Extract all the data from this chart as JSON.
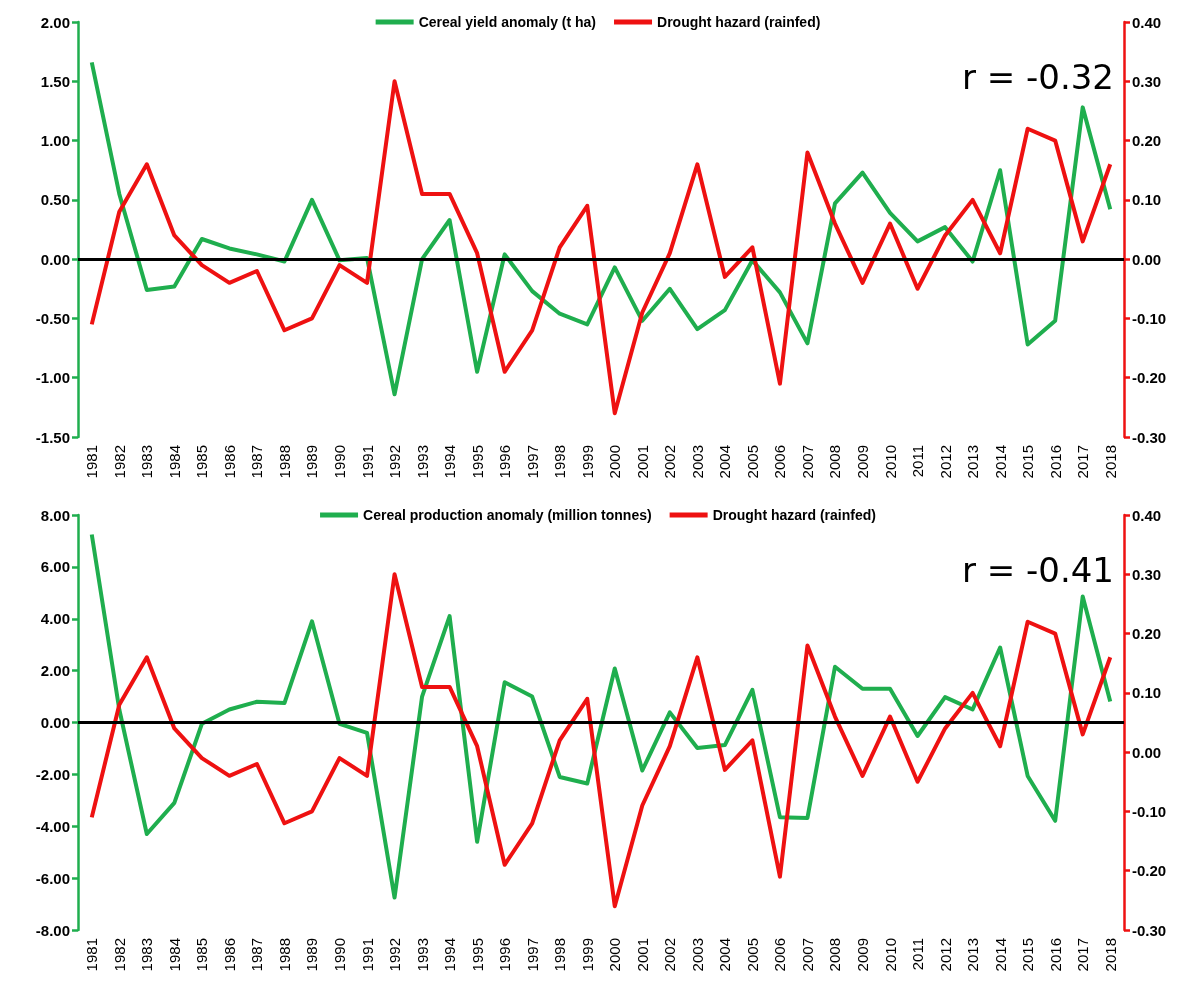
{
  "chart_data": [
    {
      "type": "line",
      "categories": [
        "1981",
        "1982",
        "1983",
        "1984",
        "1985",
        "1986",
        "1987",
        "1988",
        "1989",
        "1990",
        "1991",
        "1992",
        "1993",
        "1994",
        "1995",
        "1996",
        "1997",
        "1998",
        "1999",
        "2000",
        "2001",
        "2002",
        "2003",
        "2004",
        "2005",
        "2006",
        "2007",
        "2008",
        "2009",
        "2010",
        "2011",
        "2012",
        "2013",
        "2014",
        "2015",
        "2016",
        "2017",
        "2018"
      ],
      "series": [
        {
          "name": "Cereal yield anomaly (t ha)",
          "color": "#1fae4e",
          "values": [
            1.66,
            0.55,
            -0.26,
            -0.23,
            0.17,
            0.09,
            0.04,
            -0.02,
            0.5,
            -0.01,
            0.01,
            -1.14,
            0.0,
            0.33,
            -0.95,
            0.04,
            -0.27,
            -0.46,
            -0.55,
            -0.07,
            -0.52,
            -0.25,
            -0.59,
            -0.43,
            -0.01,
            -0.28,
            -0.71,
            0.47,
            0.73,
            0.39,
            0.15,
            0.27,
            -0.02,
            0.75,
            -0.72,
            -0.52,
            1.28,
            0.42
          ]
        },
        {
          "name": "Drought hazard (rainfed)",
          "color": "#ee1111",
          "axis": "y2",
          "values": [
            -0.11,
            0.08,
            0.16,
            0.04,
            -0.01,
            -0.04,
            -0.02,
            -0.12,
            -0.1,
            -0.01,
            -0.04,
            0.3,
            0.11,
            0.11,
            0.01,
            -0.19,
            -0.12,
            0.02,
            0.09,
            -0.26,
            -0.09,
            0.01,
            0.16,
            -0.03,
            0.02,
            -0.21,
            0.18,
            0.06,
            -0.04,
            0.06,
            -0.05,
            0.04,
            0.1,
            0.01,
            0.22,
            0.2,
            0.03,
            0.16
          ]
        }
      ],
      "ylim": [
        -1.5,
        2
      ],
      "yticks": [
        {
          "value": -1.5,
          "label": "-1.50"
        },
        {
          "value": -1,
          "label": "-1.00"
        },
        {
          "value": -0.5,
          "label": "-0.50"
        },
        {
          "value": 0,
          "label": "0.00"
        },
        {
          "value": 0.5,
          "label": "0.50"
        },
        {
          "value": 1,
          "label": "1.00"
        },
        {
          "value": 1.5,
          "label": "1.50"
        },
        {
          "value": 2,
          "label": "2.00"
        }
      ],
      "y2lim": [
        -0.3,
        0.4
      ],
      "y2ticks": [
        {
          "value": -0.3,
          "label": "-0.30"
        },
        {
          "value": -0.2,
          "label": "-0.20"
        },
        {
          "value": -0.1,
          "label": "-0.10"
        },
        {
          "value": 0,
          "label": "0.00"
        },
        {
          "value": 0.1,
          "label": "0.10"
        },
        {
          "value": 0.2,
          "label": "0.20"
        },
        {
          "value": 0.3,
          "label": "0.30"
        },
        {
          "value": 0.4,
          "label": "0.40"
        }
      ],
      "ref_lines": [
        {
          "axis": "y",
          "value": 0,
          "color": "#000000"
        }
      ],
      "annotations": [
        "r = -0.32"
      ],
      "legend": "top",
      "marker": "none",
      "grid": false
    },
    {
      "type": "line",
      "categories": [
        "1981",
        "1982",
        "1983",
        "1984",
        "1985",
        "1986",
        "1987",
        "1988",
        "1989",
        "1990",
        "1991",
        "1992",
        "1993",
        "1994",
        "1995",
        "1996",
        "1997",
        "1998",
        "1999",
        "2000",
        "2001",
        "2002",
        "2003",
        "2004",
        "2005",
        "2006",
        "2007",
        "2008",
        "2009",
        "2010",
        "2011",
        "2012",
        "2013",
        "2014",
        "2015",
        "2016",
        "2017",
        "2018"
      ],
      "series": [
        {
          "name": "Cereal production anomaly (million tonnes)",
          "color": "#1fae4e",
          "values": [
            7.25,
            0.5,
            -4.3,
            -3.1,
            -0.05,
            0.5,
            0.8,
            0.75,
            3.9,
            -0.05,
            -0.4,
            -6.75,
            1.0,
            4.1,
            -4.6,
            1.55,
            1.0,
            -2.1,
            -2.35,
            2.08,
            -1.85,
            0.39,
            -0.98,
            -0.87,
            1.26,
            -3.65,
            -3.68,
            2.15,
            1.3,
            1.3,
            -0.52,
            0.98,
            0.5,
            2.89,
            -2.06,
            -3.79,
            4.86,
            0.81
          ]
        },
        {
          "name": "Drought hazard (rainfed)",
          "color": "#ee1111",
          "axis": "y2",
          "values": [
            -0.11,
            0.08,
            0.16,
            0.04,
            -0.01,
            -0.04,
            -0.02,
            -0.12,
            -0.1,
            -0.01,
            -0.04,
            0.3,
            0.11,
            0.11,
            0.01,
            -0.19,
            -0.12,
            0.02,
            0.09,
            -0.26,
            -0.09,
            0.01,
            0.16,
            -0.03,
            0.02,
            -0.21,
            0.18,
            0.06,
            -0.04,
            0.06,
            -0.05,
            0.04,
            0.1,
            0.01,
            0.22,
            0.2,
            0.03,
            0.16
          ]
        }
      ],
      "ylim": [
        -8,
        8
      ],
      "yticks": [
        {
          "value": -8,
          "label": "-8.00"
        },
        {
          "value": -6,
          "label": "-6.00"
        },
        {
          "value": -4,
          "label": "-4.00"
        },
        {
          "value": -2,
          "label": "-2.00"
        },
        {
          "value": 0,
          "label": "0.00"
        },
        {
          "value": 2,
          "label": "2.00"
        },
        {
          "value": 4,
          "label": "4.00"
        },
        {
          "value": 6,
          "label": "6.00"
        },
        {
          "value": 8,
          "label": "8.00"
        }
      ],
      "y2lim": [
        -0.3,
        0.4
      ],
      "y2ticks": [
        {
          "value": -0.3,
          "label": "-0.30"
        },
        {
          "value": -0.2,
          "label": "-0.20"
        },
        {
          "value": -0.1,
          "label": "-0.10"
        },
        {
          "value": 0,
          "label": "0.00"
        },
        {
          "value": 0.1,
          "label": "0.10"
        },
        {
          "value": 0.2,
          "label": "0.20"
        },
        {
          "value": 0.3,
          "label": "0.30"
        },
        {
          "value": 0.4,
          "label": "0.40"
        }
      ],
      "ref_lines": [
        {
          "axis": "y",
          "value": 0,
          "color": "#000000"
        }
      ],
      "annotations": [
        "r = -0.41"
      ],
      "legend": "top",
      "marker": "none",
      "grid": false
    }
  ]
}
